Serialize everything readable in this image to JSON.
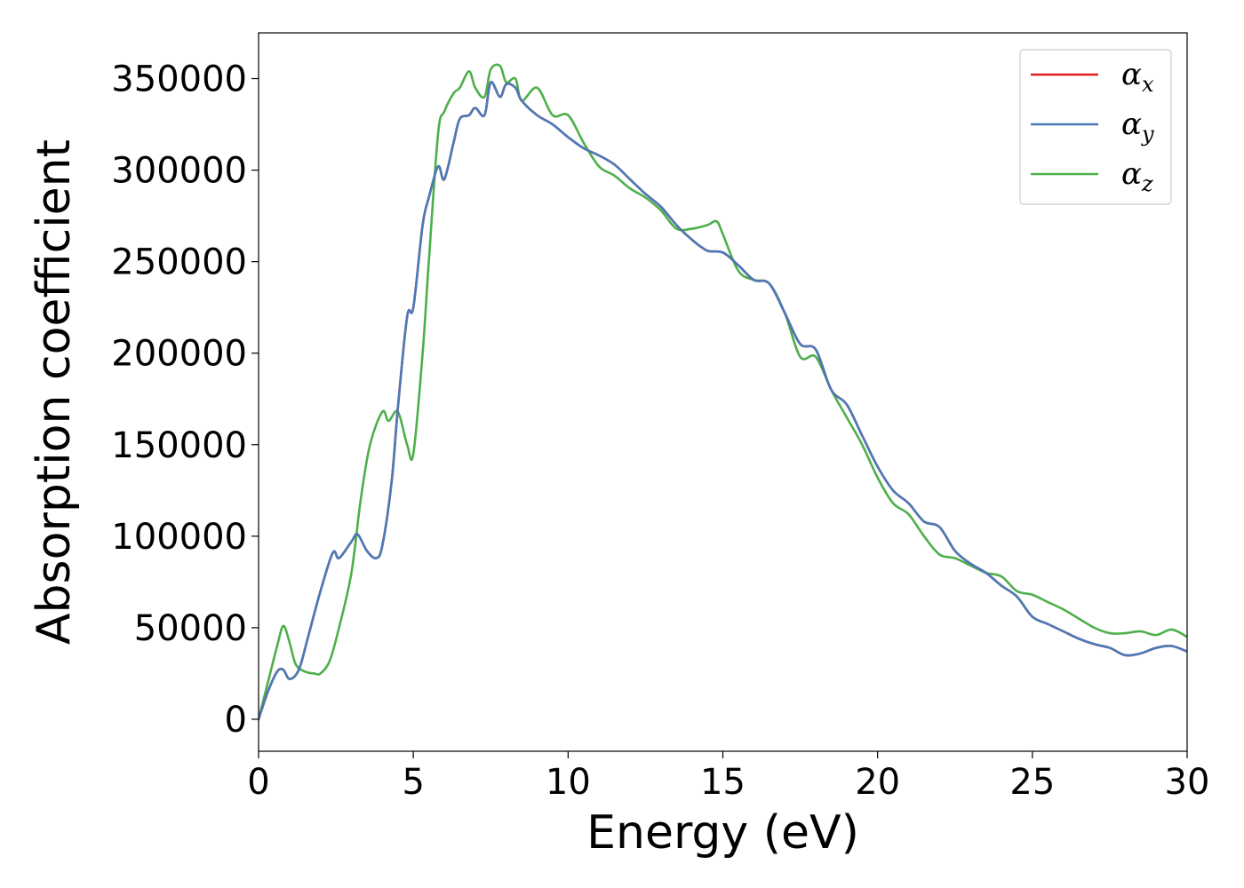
{
  "chart_data": {
    "type": "line",
    "title": "",
    "xlabel": "Energy (eV)",
    "ylabel": "Absorption coefficient",
    "xlim": [
      0,
      30
    ],
    "ylim": [
      -17500,
      375000
    ],
    "xticks": [
      0,
      5,
      10,
      15,
      20,
      25,
      30
    ],
    "yticks": [
      0,
      50000,
      100000,
      150000,
      200000,
      250000,
      300000,
      350000
    ],
    "grid": false,
    "legend_position": "top-right",
    "series": [
      {
        "name": "α_x",
        "legend_symbol": "α",
        "legend_subscript": "x",
        "color": "#e41a1c",
        "x": [
          0,
          0.3,
          0.6,
          0.8,
          1.0,
          1.3,
          1.6,
          2.0,
          2.4,
          2.6,
          3.0,
          3.2,
          3.5,
          3.8,
          4.0,
          4.3,
          4.5,
          4.8,
          5.0,
          5.3,
          5.5,
          5.8,
          6.0,
          6.3,
          6.5,
          6.8,
          7.0,
          7.3,
          7.5,
          7.8,
          8.0,
          8.3,
          8.5,
          9.0,
          9.5,
          10.0,
          10.5,
          11.0,
          11.5,
          12.0,
          12.5,
          13.0,
          13.5,
          14.0,
          14.5,
          15.0,
          15.5,
          16.0,
          16.5,
          17.0,
          17.5,
          18.0,
          18.5,
          19.0,
          19.5,
          20.0,
          20.5,
          21.0,
          21.5,
          22.0,
          22.5,
          23.0,
          23.5,
          24.0,
          24.5,
          25.0,
          25.5,
          26.0,
          26.5,
          27.0,
          27.5,
          28.0,
          28.5,
          29.0,
          29.5,
          30.0
        ],
        "y": [
          0,
          15000,
          26000,
          27000,
          22000,
          27000,
          45000,
          70000,
          91000,
          88000,
          97000,
          101000,
          92000,
          88000,
          95000,
          130000,
          170000,
          220000,
          225000,
          270000,
          285000,
          302000,
          295000,
          315000,
          328000,
          330000,
          334000,
          330000,
          348000,
          340000,
          347000,
          345000,
          338000,
          330000,
          325000,
          318000,
          312000,
          308000,
          303000,
          295000,
          287000,
          280000,
          270000,
          262000,
          256000,
          255000,
          248000,
          240000,
          238000,
          222000,
          205000,
          202000,
          180000,
          172000,
          155000,
          138000,
          125000,
          118000,
          108000,
          105000,
          92000,
          85000,
          80000,
          73000,
          67000,
          56000,
          52000,
          48000,
          44000,
          41000,
          39000,
          35000,
          36000,
          39000,
          40000,
          37000
        ]
      },
      {
        "name": "α_y",
        "legend_symbol": "α",
        "legend_subscript": "y",
        "color": "#4a7ab8",
        "x": [
          0,
          0.3,
          0.6,
          0.8,
          1.0,
          1.3,
          1.6,
          2.0,
          2.4,
          2.6,
          3.0,
          3.2,
          3.5,
          3.8,
          4.0,
          4.3,
          4.5,
          4.8,
          5.0,
          5.3,
          5.5,
          5.8,
          6.0,
          6.3,
          6.5,
          6.8,
          7.0,
          7.3,
          7.5,
          7.8,
          8.0,
          8.3,
          8.5,
          9.0,
          9.5,
          10.0,
          10.5,
          11.0,
          11.5,
          12.0,
          12.5,
          13.0,
          13.5,
          14.0,
          14.5,
          15.0,
          15.5,
          16.0,
          16.5,
          17.0,
          17.5,
          18.0,
          18.5,
          19.0,
          19.5,
          20.0,
          20.5,
          21.0,
          21.5,
          22.0,
          22.5,
          23.0,
          23.5,
          24.0,
          24.5,
          25.0,
          25.5,
          26.0,
          26.5,
          27.0,
          27.5,
          28.0,
          28.5,
          29.0,
          29.5,
          30.0
        ],
        "y": [
          0,
          15000,
          26000,
          27000,
          22000,
          27000,
          45000,
          70000,
          91000,
          88000,
          97000,
          101000,
          92000,
          88000,
          95000,
          130000,
          170000,
          220000,
          225000,
          270000,
          285000,
          302000,
          295000,
          315000,
          328000,
          330000,
          334000,
          330000,
          348000,
          340000,
          347000,
          345000,
          338000,
          330000,
          325000,
          318000,
          312000,
          308000,
          303000,
          295000,
          287000,
          280000,
          270000,
          262000,
          256000,
          255000,
          248000,
          240000,
          238000,
          222000,
          205000,
          202000,
          180000,
          172000,
          155000,
          138000,
          125000,
          118000,
          108000,
          105000,
          92000,
          85000,
          80000,
          73000,
          67000,
          56000,
          52000,
          48000,
          44000,
          41000,
          39000,
          35000,
          36000,
          39000,
          40000,
          37000
        ]
      },
      {
        "name": "α_z",
        "legend_symbol": "α",
        "legend_subscript": "z",
        "color": "#4daf4a",
        "x": [
          0,
          0.3,
          0.6,
          0.8,
          1.0,
          1.2,
          1.5,
          1.8,
          2.0,
          2.3,
          2.6,
          3.0,
          3.3,
          3.6,
          4.0,
          4.2,
          4.5,
          4.8,
          5.0,
          5.3,
          5.5,
          5.8,
          6.0,
          6.3,
          6.5,
          6.8,
          7.0,
          7.3,
          7.5,
          7.8,
          8.0,
          8.3,
          8.5,
          9.0,
          9.5,
          10.0,
          10.5,
          11.0,
          11.5,
          12.0,
          12.5,
          13.0,
          13.5,
          14.0,
          14.5,
          14.8,
          15.0,
          15.5,
          16.0,
          16.5,
          17.0,
          17.5,
          18.0,
          18.5,
          19.0,
          19.5,
          20.0,
          20.5,
          21.0,
          21.5,
          22.0,
          22.5,
          23.0,
          23.5,
          24.0,
          24.5,
          25.0,
          25.5,
          26.0,
          26.5,
          27.0,
          27.5,
          28.0,
          28.5,
          29.0,
          29.5,
          30.0
        ],
        "y": [
          0,
          20000,
          40000,
          51000,
          42000,
          30000,
          26000,
          25000,
          25000,
          32000,
          50000,
          80000,
          120000,
          150000,
          168000,
          163000,
          168000,
          150000,
          145000,
          200000,
          250000,
          320000,
          332000,
          342000,
          345000,
          354000,
          345000,
          340000,
          355000,
          357000,
          348000,
          350000,
          338000,
          345000,
          330000,
          330000,
          315000,
          302000,
          297000,
          290000,
          285000,
          278000,
          268000,
          268000,
          270000,
          272000,
          265000,
          245000,
          240000,
          238000,
          222000,
          198000,
          198000,
          180000,
          165000,
          150000,
          132000,
          118000,
          112000,
          100000,
          90000,
          88000,
          84000,
          80000,
          78000,
          70000,
          68000,
          64000,
          60000,
          55000,
          50000,
          47000,
          47000,
          48000,
          46000,
          49000,
          45000
        ]
      }
    ]
  }
}
